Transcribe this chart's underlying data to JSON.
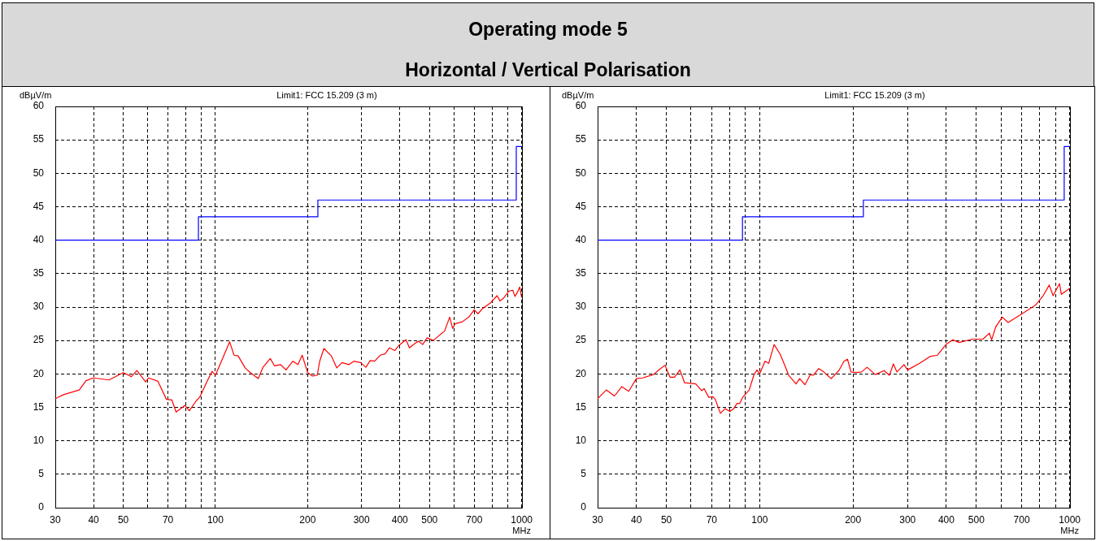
{
  "chart_data": [
    {
      "type": "line",
      "title": "Operating mode 5",
      "subtitle": "Horizontal / Vertical Polarisation",
      "xlabel": "MHz",
      "ylabel": "dBµV/m",
      "annotations": [
        "Limit1: FCC 15.209 (3 m)"
      ],
      "log": "x",
      "grid": true,
      "xlim": [
        30,
        1000
      ],
      "xticks": [
        30,
        40,
        50,
        {
          "value": 60,
          "label": null
        },
        70,
        {
          "value": 80,
          "label": null
        },
        {
          "value": 90,
          "label": null
        },
        100,
        200,
        300,
        400,
        500,
        {
          "value": 600,
          "label": null
        },
        700,
        {
          "value": 800,
          "label": null
        },
        {
          "value": 900,
          "label": null
        },
        1000
      ],
      "ylim": [
        0,
        60
      ],
      "yticks": [
        0,
        5,
        10,
        15,
        20,
        25,
        30,
        35,
        40,
        45,
        50,
        55,
        60
      ],
      "series": [
        {
          "type": "step",
          "color": "#0000ff",
          "x": [
            30,
            88,
            216,
            960,
            1000
          ],
          "values": [
            40,
            43.5,
            46,
            54,
            54
          ]
        },
        {
          "type": "line",
          "color": "#ff0000",
          "x": [
            30,
            31.9,
            35.9,
            37.8,
            40,
            44.9,
            50,
            53.2,
            55.4,
            59.2,
            60.5,
            64.9,
            69.2,
            72.1,
            74.4,
            79.6,
            82.2,
            86.6,
            88.8,
            93.7,
            97.5,
            100,
            111.3,
            115,
            118.6,
            125,
            130,
            138,
            143,
            151,
            156,
            163,
            170,
            179,
            186,
            192,
            200,
            207,
            215,
            219,
            226,
            239,
            249,
            259,
            273,
            283,
            298,
            310,
            320,
            331,
            345,
            358,
            370,
            385,
            398,
            419,
            430,
            440,
            460,
            475,
            491,
            515,
            539,
            560,
            582,
            595,
            606,
            640,
            672,
            700,
            720,
            746,
            790,
            831,
            850,
            875,
            910,
            936,
            950,
            968,
            985,
            1000
          ],
          "values": [
            16.3,
            16.9,
            17.6,
            19.0,
            19.4,
            19.1,
            20.2,
            19.6,
            20.5,
            18.8,
            19.4,
            18.9,
            16.2,
            16.1,
            14.3,
            15.3,
            14.5,
            16.0,
            16.5,
            18.8,
            20.4,
            19.8,
            24.8,
            22.8,
            22.7,
            20.9,
            20.2,
            19.3,
            21.0,
            22.3,
            21.2,
            21.4,
            20.6,
            21.9,
            21.4,
            22.8,
            20.2,
            19.7,
            19.8,
            21.9,
            23.8,
            22.7,
            20.9,
            21.7,
            21.4,
            21.9,
            21.7,
            21.0,
            22.0,
            21.9,
            22.8,
            23.0,
            23.9,
            23.5,
            24.3,
            25.1,
            23.9,
            24.3,
            24.9,
            24.4,
            25.4,
            25.0,
            25.8,
            26.4,
            28.5,
            26.8,
            27.5,
            27.8,
            28.5,
            29.6,
            29.0,
            29.8,
            30.6,
            31.7,
            30.9,
            31.4,
            32.4,
            32.5,
            31.6,
            32.2,
            33.0,
            31.4
          ]
        }
      ]
    },
    {
      "type": "line",
      "xlabel": "MHz",
      "ylabel": "dBµV/m",
      "annotations": [
        "Limit1: FCC 15.209 (3 m)"
      ],
      "log": "x",
      "grid": true,
      "xlim": [
        30,
        1000
      ],
      "xticks": [
        30,
        40,
        50,
        {
          "value": 60,
          "label": null
        },
        70,
        {
          "value": 80,
          "label": null
        },
        {
          "value": 90,
          "label": null
        },
        100,
        200,
        300,
        400,
        500,
        {
          "value": 600,
          "label": null
        },
        700,
        {
          "value": 800,
          "label": null
        },
        {
          "value": 900,
          "label": null
        },
        1000
      ],
      "ylim": [
        0,
        60
      ],
      "yticks": [
        0,
        5,
        10,
        15,
        20,
        25,
        30,
        35,
        40,
        45,
        50,
        55,
        60
      ],
      "series": [
        {
          "type": "step",
          "color": "#0000ff",
          "x": [
            30,
            88,
            216,
            960,
            1000
          ],
          "values": [
            40,
            43.5,
            46,
            54,
            54
          ]
        },
        {
          "type": "line",
          "color": "#ff0000",
          "x": [
            30,
            32,
            34,
            35.9,
            37.8,
            40,
            41.9,
            45.4,
            47.6,
            49.5,
            51.4,
            53.1,
            55.3,
            57.2,
            62.2,
            65,
            66.2,
            68.5,
            70.6,
            71.9,
            74.7,
            77.3,
            80.2,
            82.4,
            84.5,
            86.3,
            88.1,
            90,
            92.5,
            95.7,
            98,
            100,
            104,
            107,
            111.3,
            116.6,
            120.7,
            124,
            131,
            134.5,
            140,
            145.6,
            149,
            155,
            161,
            170,
            180,
            187,
            192,
            197,
            205,
            213,
            222,
            236,
            252,
            262,
            270,
            277,
            292,
            300,
            328,
            354,
            374,
            399,
            420,
            440,
            486,
            525,
            551,
            560,
            577,
            606,
            633,
            702,
            776,
            821,
            859,
            884,
            927,
            940,
            1000
          ],
          "values": [
            16.3,
            17.6,
            16.7,
            18.1,
            17.4,
            19.3,
            19.4,
            19.9,
            20.7,
            21.3,
            19.5,
            19.5,
            20.6,
            18.7,
            18.5,
            17.5,
            17.8,
            16.5,
            16.6,
            16.2,
            14.1,
            14.8,
            14.4,
            14.8,
            15.6,
            15.6,
            16.5,
            17.0,
            17.6,
            19.8,
            20.6,
            20.0,
            21.9,
            21.6,
            24.4,
            22.9,
            21.2,
            19.8,
            18.5,
            19.3,
            18.4,
            19.9,
            19.8,
            20.8,
            20.3,
            19.3,
            20.5,
            21.9,
            22.2,
            20.3,
            20.2,
            20.3,
            21.0,
            19.9,
            20.5,
            19.8,
            21.5,
            20.3,
            21.4,
            20.6,
            21.6,
            22.6,
            22.8,
            24.4,
            25.1,
            24.7,
            25.2,
            25.2,
            26.1,
            25.1,
            27.0,
            28.5,
            27.7,
            29.0,
            30.3,
            31.7,
            33.3,
            31.7,
            33.5,
            31.9,
            32.8
          ]
        }
      ]
    }
  ]
}
